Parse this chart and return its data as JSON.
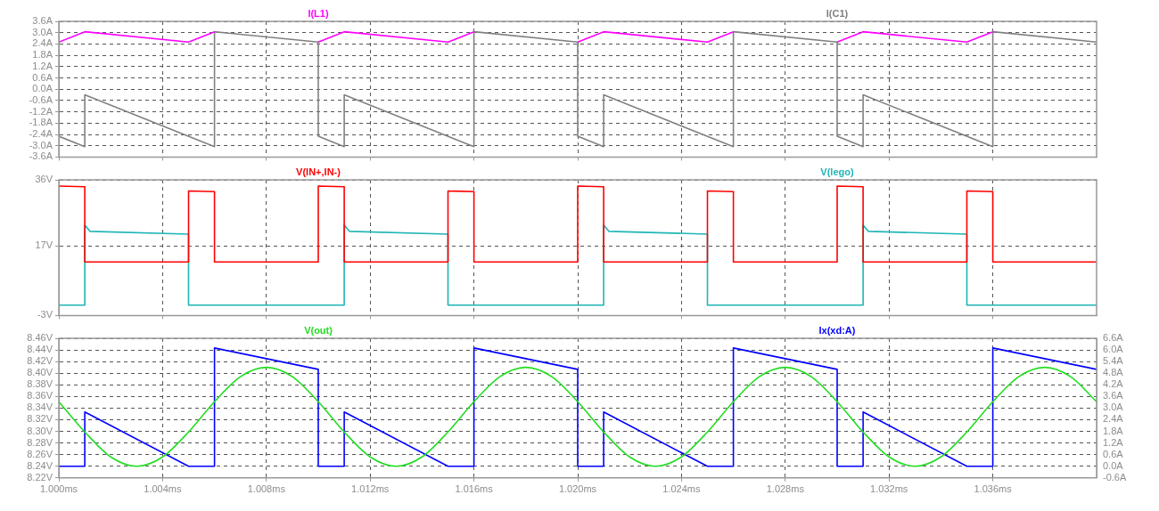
{
  "chart_data": [
    {
      "type": "line",
      "xlim": [
        1.0,
        1.04
      ],
      "xticks": [
        {
          "value": 1.0,
          "label": null
        },
        {
          "value": 1.004,
          "label": null
        },
        {
          "value": 1.008,
          "label": null
        },
        {
          "value": 1.012,
          "label": null
        },
        {
          "value": 1.016,
          "label": null
        },
        {
          "value": 1.02,
          "label": null
        },
        {
          "value": 1.024,
          "label": null
        },
        {
          "value": 1.028,
          "label": null
        },
        {
          "value": 1.032,
          "label": null
        },
        {
          "value": 1.036,
          "label": null
        }
      ],
      "ylim": [
        -3.6,
        3.6
      ],
      "yticks": [
        {
          "value": -3.6,
          "label": "-3.6A"
        },
        {
          "value": -3.0,
          "label": "-3.0A"
        },
        {
          "value": -2.4,
          "label": "-2.4A"
        },
        {
          "value": -1.8,
          "label": "-1.8A"
        },
        {
          "value": -1.2,
          "label": "-1.2A"
        },
        {
          "value": -0.6,
          "label": "-0.6A"
        },
        {
          "value": 0,
          "label": "0.0A"
        },
        {
          "value": 0.6,
          "label": "0.6A"
        },
        {
          "value": 1.2,
          "label": "1.2A"
        },
        {
          "value": 1.8,
          "label": "1.8A"
        },
        {
          "value": 2.4,
          "label": "2.4A"
        },
        {
          "value": 3.0,
          "label": "3.0A"
        },
        {
          "value": 3.6,
          "label": "3.6A"
        }
      ],
      "tick_labels": "y",
      "grid": true,
      "legend": "top",
      "marker": "none",
      "line_style": "solid",
      "series": [
        {
          "name": "I(L1)",
          "color": "#ff00ff",
          "x": [
            1.0,
            1.001,
            1.005,
            1.006,
            1.008,
            1.01,
            1.011,
            1.015,
            1.016,
            1.018,
            1.02,
            1.021,
            1.025,
            1.026,
            1.028,
            1.03,
            1.031,
            1.035,
            1.036
          ],
          "values": [
            2.5,
            3.05,
            2.5,
            3.05,
            null,
            2.5,
            3.05,
            2.5,
            3.05,
            null,
            2.5,
            3.05,
            2.5,
            3.05,
            null,
            2.5,
            3.05,
            2.5,
            3.05
          ]
        },
        {
          "name": "I(C1)",
          "color": "#808080",
          "x": [
            1.0,
            1.0,
            1.001,
            1.001,
            1.006,
            1.006,
            1.01,
            1.01,
            1.011,
            1.011,
            1.016,
            1.016,
            1.02,
            1.02,
            1.021,
            1.021,
            1.026,
            1.026,
            1.03,
            1.03,
            1.031,
            1.031,
            1.036,
            1.036,
            1.04
          ],
          "values": [
            2.5,
            -2.5,
            -3.05,
            -0.3,
            -3.05,
            3.05,
            2.5,
            -2.5,
            -3.05,
            -0.3,
            -3.05,
            3.05,
            2.5,
            -2.5,
            -3.05,
            -0.3,
            -3.05,
            3.05,
            2.5,
            -2.5,
            -3.05,
            -0.3,
            -3.05,
            3.05,
            2.5
          ]
        }
      ]
    },
    {
      "type": "line",
      "xlim": [
        1.0,
        1.04
      ],
      "xticks": [
        {
          "value": 1.0,
          "label": null
        },
        {
          "value": 1.004,
          "label": null
        },
        {
          "value": 1.008,
          "label": null
        },
        {
          "value": 1.012,
          "label": null
        },
        {
          "value": 1.016,
          "label": null
        },
        {
          "value": 1.02,
          "label": null
        },
        {
          "value": 1.024,
          "label": null
        },
        {
          "value": 1.028,
          "label": null
        },
        {
          "value": 1.032,
          "label": null
        },
        {
          "value": 1.036,
          "label": null
        }
      ],
      "ylim": [
        -3,
        36
      ],
      "yticks": [
        {
          "value": -3,
          "label": "-3V"
        },
        {
          "value": 17,
          "label": "17V"
        },
        {
          "value": 36,
          "label": "36V"
        }
      ],
      "tick_labels": "y",
      "grid": true,
      "legend": "top",
      "marker": "none",
      "line_style": "solid",
      "series": [
        {
          "name": "V(IN+,IN-)",
          "color": "#ff0000",
          "x": [
            1.0,
            1.001,
            1.001,
            1.005,
            1.005,
            1.006,
            1.006,
            1.01,
            1.01,
            1.011,
            1.011,
            1.015,
            1.015,
            1.016,
            1.016,
            1.02,
            1.02,
            1.021,
            1.021,
            1.025,
            1.025,
            1.026,
            1.026,
            1.03,
            1.03,
            1.031,
            1.031,
            1.035,
            1.035,
            1.036,
            1.036,
            1.04
          ],
          "values": [
            34.2,
            34.0,
            12.4,
            12.4,
            32.8,
            32.6,
            12.4,
            12.4,
            34.2,
            34.0,
            12.4,
            12.4,
            32.8,
            32.6,
            12.4,
            12.4,
            34.2,
            34.0,
            12.4,
            12.4,
            32.8,
            32.6,
            12.4,
            12.4,
            34.2,
            34.0,
            12.4,
            12.4,
            32.8,
            32.6,
            12.4,
            12.4
          ]
        },
        {
          "name": "V(lego)",
          "color": "#1fb5b5",
          "x": [
            1.0,
            1.001,
            1.001,
            1.0012,
            1.005,
            1.005,
            1.011,
            1.011,
            1.0112,
            1.015,
            1.015,
            1.021,
            1.021,
            1.0212,
            1.025,
            1.025,
            1.031,
            1.031,
            1.0312,
            1.035,
            1.035,
            1.04
          ],
          "values": [
            0,
            0,
            23,
            21.2,
            20.4,
            0,
            0,
            23,
            21.2,
            20.4,
            0,
            0,
            23,
            21.2,
            20.4,
            0,
            0,
            23,
            21.2,
            20.4,
            0,
            0
          ]
        }
      ]
    },
    {
      "type": "line",
      "xlim": [
        1.0,
        1.04
      ],
      "xticks": [
        {
          "value": 1.0,
          "label": "1.000ms"
        },
        {
          "value": 1.004,
          "label": "1.004ms"
        },
        {
          "value": 1.008,
          "label": "1.008ms"
        },
        {
          "value": 1.012,
          "label": "1.012ms"
        },
        {
          "value": 1.016,
          "label": "1.016ms"
        },
        {
          "value": 1.02,
          "label": "1.020ms"
        },
        {
          "value": 1.024,
          "label": "1.024ms"
        },
        {
          "value": 1.028,
          "label": "1.028ms"
        },
        {
          "value": 1.032,
          "label": "1.032ms"
        },
        {
          "value": 1.036,
          "label": "1.036ms"
        }
      ],
      "ylim": [
        8.22,
        8.46
      ],
      "yticks": [
        {
          "value": 8.22,
          "label": "8.22V"
        },
        {
          "value": 8.24,
          "label": "8.24V"
        },
        {
          "value": 8.26,
          "label": "8.26V"
        },
        {
          "value": 8.28,
          "label": "8.28V"
        },
        {
          "value": 8.3,
          "label": "8.30V"
        },
        {
          "value": 8.32,
          "label": "8.32V"
        },
        {
          "value": 8.34,
          "label": "8.34V"
        },
        {
          "value": 8.36,
          "label": "8.36V"
        },
        {
          "value": 8.38,
          "label": "8.38V"
        },
        {
          "value": 8.4,
          "label": "8.40V"
        },
        {
          "value": 8.42,
          "label": "8.42V"
        },
        {
          "value": 8.44,
          "label": "8.44V"
        },
        {
          "value": 8.46,
          "label": "8.46V"
        }
      ],
      "y2lim": [
        -0.6,
        6.6
      ],
      "y2ticks": [
        {
          "value": -0.6,
          "label": "-0.6A"
        },
        {
          "value": 0,
          "label": "0.0A"
        },
        {
          "value": 0.6,
          "label": "0.6A"
        },
        {
          "value": 1.2,
          "label": "1.2A"
        },
        {
          "value": 1.8,
          "label": "1.8A"
        },
        {
          "value": 2.4,
          "label": "2.4A"
        },
        {
          "value": 3.0,
          "label": "3.0A"
        },
        {
          "value": 3.6,
          "label": "3.6A"
        },
        {
          "value": 4.2,
          "label": "4.2A"
        },
        {
          "value": 4.8,
          "label": "4.8A"
        },
        {
          "value": 5.4,
          "label": "5.4A"
        },
        {
          "value": 6.0,
          "label": "6.0A"
        },
        {
          "value": 6.6,
          "label": "6.6A"
        }
      ],
      "grid": true,
      "legend": "top",
      "marker": "none",
      "line_style": "solid",
      "series": [
        {
          "name": "V(out)",
          "color": "#22dd22",
          "x": [
            1.0,
            1.001,
            1.002,
            1.003,
            1.004,
            1.005,
            1.006,
            1.007,
            1.008,
            1.009,
            1.01,
            1.011,
            1.012,
            1.013,
            1.014,
            1.015,
            1.016,
            1.017,
            1.018,
            1.019,
            1.02,
            1.021,
            1.022,
            1.023,
            1.024,
            1.025,
            1.026,
            1.027,
            1.028,
            1.029,
            1.03,
            1.031,
            1.032,
            1.033,
            1.034,
            1.035,
            1.036,
            1.037,
            1.038,
            1.039,
            1.04
          ],
          "values": [
            8.351,
            8.299,
            8.256,
            8.24,
            8.256,
            8.299,
            8.351,
            8.394,
            8.41,
            8.394,
            8.351,
            8.299,
            8.256,
            8.24,
            8.256,
            8.299,
            8.351,
            8.394,
            8.41,
            8.394,
            8.351,
            8.299,
            8.256,
            8.24,
            8.256,
            8.299,
            8.351,
            8.394,
            8.41,
            8.394,
            8.351,
            8.299,
            8.256,
            8.24,
            8.256,
            8.299,
            8.351,
            8.394,
            8.41,
            8.394,
            8.351
          ]
        },
        {
          "name": "Ix(xd:A)",
          "color": "#0000ff",
          "axis": "y2",
          "x": [
            1.0,
            1.001,
            1.001,
            1.005,
            1.006,
            1.006,
            1.01,
            1.01,
            1.011,
            1.011,
            1.015,
            1.016,
            1.016,
            1.02,
            1.02,
            1.021,
            1.021,
            1.025,
            1.026,
            1.026,
            1.03,
            1.03,
            1.031,
            1.031,
            1.035,
            1.036,
            1.036,
            1.04
          ],
          "values": [
            0,
            0,
            2.8,
            0,
            0,
            6.1,
            5.0,
            0,
            0,
            2.8,
            0,
            0,
            6.1,
            5.0,
            0,
            0,
            2.8,
            0,
            0,
            6.1,
            5.0,
            0,
            0,
            2.8,
            0,
            0,
            6.1,
            5.0
          ]
        }
      ]
    }
  ]
}
